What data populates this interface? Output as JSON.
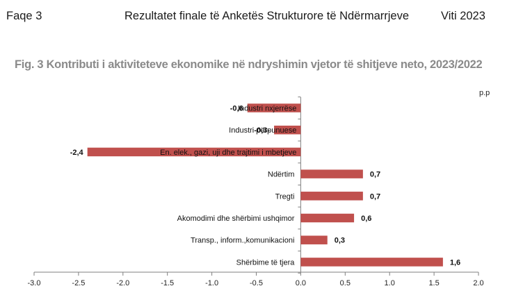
{
  "header": {
    "page": "Faqe 3",
    "report": "Rezultatet finale të Anketës Strukturore të Ndërmarrjeve",
    "year": "Viti 2023"
  },
  "chart_data": {
    "type": "bar",
    "orientation": "horizontal",
    "title": "Fig. 3 Kontributi i aktiviteteve ekonomike në ndryshimin vjetor të shitjeve neto, 2023/2022",
    "unit_label": "p.p",
    "categories": [
      "Industri nxjerrëse",
      "Industri përpunuese",
      "En. elek., gazi, uji dhe trajtimi i mbetjeve",
      "Ndërtim",
      "Tregti",
      "Akomodimi dhe shërbimi ushqimor",
      "Transp., inform.,komunikacioni",
      "Shërbime të tjera"
    ],
    "values": [
      -0.6,
      -0.3,
      -2.4,
      0.7,
      0.7,
      0.6,
      0.3,
      1.6
    ],
    "value_labels": [
      "-0,6",
      "-0,3-",
      "-2,4",
      "0,7",
      "0,7",
      "0,6",
      "0,3",
      "1,6"
    ],
    "xlim": [
      -3.0,
      2.0
    ],
    "xticks": [
      -3.0,
      -2.5,
      -2.0,
      -1.5,
      -1.0,
      -0.5,
      0.0,
      0.5,
      1.0,
      1.5,
      2.0
    ],
    "xtick_labels": [
      "-3.0",
      "-2.5",
      "-2.0",
      "-1.5",
      "-1.0",
      "-0.5",
      "0.0",
      "0.5",
      "1.0",
      "1.5",
      "2.0"
    ],
    "bar_color": "#c0504d",
    "grid": false,
    "legend": "none"
  }
}
